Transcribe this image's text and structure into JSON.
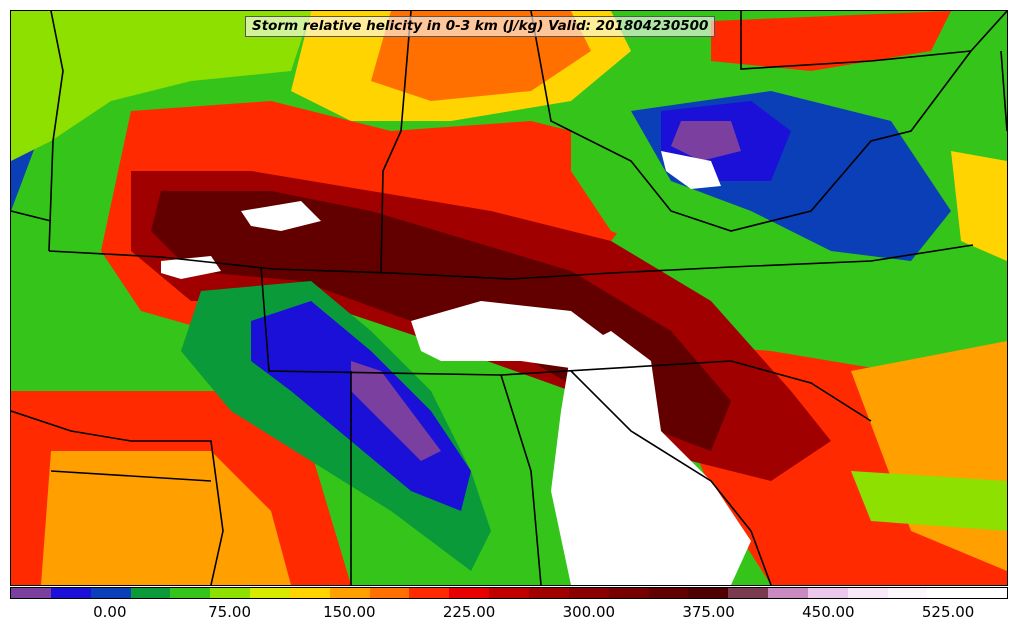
{
  "title": "Storm relative helicity in 0-3 km (J/kg) Valid: 201804230500",
  "colorbar": {
    "min": -50,
    "max": 575,
    "step": 25,
    "tick_labels": [
      "0.00",
      "75.00",
      "150.00",
      "225.00",
      "300.00",
      "375.00",
      "450.00",
      "525.00"
    ],
    "tick_values": [
      0,
      75,
      150,
      225,
      300,
      375,
      450,
      525
    ],
    "colors": [
      "#7b3fa0",
      "#1a10d8",
      "#0a3fb8",
      "#0a9a3a",
      "#34c41a",
      "#8ee000",
      "#d7ea00",
      "#ffd400",
      "#ffa000",
      "#ff7000",
      "#ff2a00",
      "#e80000",
      "#c00000",
      "#a00000",
      "#8a0000",
      "#760000",
      "#620000",
      "#4e0000",
      "#7a3a50",
      "#c88ac0",
      "#ecc8ec",
      "#f8e8f8",
      "#fdf6fd",
      "#ffffff",
      "#ffffff"
    ]
  },
  "map": {
    "background_color": "#34c41a",
    "boundary_color": "#000000",
    "fill_regions": [
      {
        "level": "#0a3fb8",
        "points": [
          [
            0,
            0
          ],
          [
            70,
            0
          ],
          [
            60,
            60
          ],
          [
            30,
            120
          ],
          [
            0,
            200
          ]
        ]
      },
      {
        "level": "#8ee000",
        "points": [
          [
            0,
            0
          ],
          [
            300,
            0
          ],
          [
            280,
            60
          ],
          [
            180,
            70
          ],
          [
            100,
            90
          ],
          [
            40,
            130
          ],
          [
            0,
            150
          ]
        ]
      },
      {
        "level": "#ffd400",
        "points": [
          [
            300,
            0
          ],
          [
            600,
            0
          ],
          [
            620,
            40
          ],
          [
            560,
            90
          ],
          [
            440,
            110
          ],
          [
            340,
            110
          ],
          [
            280,
            80
          ]
        ]
      },
      {
        "level": "#ff7000",
        "points": [
          [
            380,
            0
          ],
          [
            560,
            0
          ],
          [
            580,
            40
          ],
          [
            520,
            80
          ],
          [
            420,
            90
          ],
          [
            360,
            70
          ]
        ]
      },
      {
        "level": "#ff2a00",
        "points": [
          [
            120,
            100
          ],
          [
            260,
            90
          ],
          [
            380,
            120
          ],
          [
            520,
            110
          ],
          [
            600,
            130
          ],
          [
            640,
            180
          ],
          [
            600,
            230
          ],
          [
            520,
            270
          ],
          [
            400,
            280
          ],
          [
            300,
            300
          ],
          [
            200,
            320
          ],
          [
            130,
            300
          ],
          [
            90,
            240
          ]
        ]
      },
      {
        "level": "#ff2a00",
        "points": [
          [
            0,
            380
          ],
          [
            240,
            380
          ],
          [
            300,
            440
          ],
          [
            340,
            574
          ],
          [
            0,
            574
          ]
        ]
      },
      {
        "level": "#ffa000",
        "points": [
          [
            40,
            440
          ],
          [
            200,
            440
          ],
          [
            260,
            500
          ],
          [
            280,
            574
          ],
          [
            30,
            574
          ]
        ]
      },
      {
        "level": "#ff2a00",
        "points": [
          [
            640,
            330
          ],
          [
            760,
            340
          ],
          [
            880,
            360
          ],
          [
            960,
            390
          ],
          [
            996,
            430
          ],
          [
            996,
            574
          ],
          [
            760,
            574
          ],
          [
            700,
            480
          ]
        ]
      },
      {
        "level": "#ffa000",
        "points": [
          [
            840,
            360
          ],
          [
            996,
            330
          ],
          [
            996,
            560
          ],
          [
            900,
            520
          ]
        ]
      },
      {
        "level": "#8ee000",
        "points": [
          [
            840,
            460
          ],
          [
            996,
            470
          ],
          [
            996,
            520
          ],
          [
            860,
            510
          ]
        ]
      },
      {
        "level": "#a00000",
        "points": [
          [
            120,
            160
          ],
          [
            240,
            160
          ],
          [
            360,
            180
          ],
          [
            480,
            200
          ],
          [
            600,
            230
          ],
          [
            700,
            290
          ],
          [
            780,
            380
          ],
          [
            820,
            430
          ],
          [
            760,
            470
          ],
          [
            640,
            440
          ],
          [
            560,
            380
          ],
          [
            420,
            330
          ],
          [
            300,
            290
          ],
          [
            180,
            290
          ],
          [
            120,
            240
          ]
        ]
      },
      {
        "level": "#620000",
        "points": [
          [
            150,
            180
          ],
          [
            260,
            180
          ],
          [
            360,
            200
          ],
          [
            460,
            230
          ],
          [
            560,
            260
          ],
          [
            660,
            320
          ],
          [
            720,
            390
          ],
          [
            700,
            440
          ],
          [
            620,
            410
          ],
          [
            520,
            350
          ],
          [
            400,
            310
          ],
          [
            290,
            270
          ],
          [
            180,
            260
          ],
          [
            140,
            220
          ]
        ]
      },
      {
        "level": "#0a9a3a",
        "points": [
          [
            190,
            280
          ],
          [
            300,
            270
          ],
          [
            360,
            320
          ],
          [
            420,
            380
          ],
          [
            460,
            460
          ],
          [
            480,
            520
          ],
          [
            460,
            560
          ],
          [
            380,
            500
          ],
          [
            300,
            450
          ],
          [
            220,
            400
          ],
          [
            170,
            340
          ]
        ]
      },
      {
        "level": "#1a10d8",
        "points": [
          [
            240,
            310
          ],
          [
            300,
            290
          ],
          [
            360,
            340
          ],
          [
            420,
            400
          ],
          [
            460,
            460
          ],
          [
            450,
            500
          ],
          [
            400,
            480
          ],
          [
            340,
            430
          ],
          [
            280,
            380
          ],
          [
            240,
            350
          ]
        ]
      },
      {
        "level": "#7b3fa0",
        "points": [
          [
            340,
            350
          ],
          [
            370,
            360
          ],
          [
            400,
            400
          ],
          [
            430,
            440
          ],
          [
            410,
            450
          ],
          [
            370,
            410
          ],
          [
            340,
            380
          ]
        ]
      },
      {
        "level": "#34c41a",
        "points": [
          [
            560,
            90
          ],
          [
            700,
            70
          ],
          [
            840,
            60
          ],
          [
            960,
            80
          ],
          [
            996,
            140
          ],
          [
            996,
            260
          ],
          [
            940,
            300
          ],
          [
            800,
            300
          ],
          [
            700,
            260
          ],
          [
            600,
            220
          ],
          [
            560,
            160
          ]
        ]
      },
      {
        "level": "#0a3fb8",
        "points": [
          [
            620,
            100
          ],
          [
            760,
            80
          ],
          [
            880,
            110
          ],
          [
            940,
            200
          ],
          [
            900,
            250
          ],
          [
            820,
            240
          ],
          [
            740,
            200
          ],
          [
            660,
            170
          ]
        ]
      },
      {
        "level": "#1a10d8",
        "points": [
          [
            650,
            100
          ],
          [
            740,
            90
          ],
          [
            780,
            120
          ],
          [
            760,
            170
          ],
          [
            700,
            170
          ],
          [
            650,
            140
          ]
        ]
      },
      {
        "level": "#7b3fa0",
        "points": [
          [
            670,
            110
          ],
          [
            720,
            110
          ],
          [
            730,
            140
          ],
          [
            690,
            150
          ],
          [
            660,
            135
          ]
        ]
      },
      {
        "level": "#ffd400",
        "points": [
          [
            940,
            140
          ],
          [
            996,
            150
          ],
          [
            996,
            250
          ],
          [
            950,
            230
          ]
        ]
      },
      {
        "level": "#ff2a00",
        "points": [
          [
            700,
            10
          ],
          [
            940,
            0
          ],
          [
            920,
            40
          ],
          [
            800,
            60
          ],
          [
            700,
            50
          ]
        ]
      },
      {
        "level": "#ffffff",
        "points": [
          [
            400,
            310
          ],
          [
            470,
            290
          ],
          [
            560,
            300
          ],
          [
            600,
            330
          ],
          [
            580,
            360
          ],
          [
            510,
            350
          ],
          [
            430,
            350
          ],
          [
            410,
            340
          ]
        ]
      },
      {
        "level": "#ffffff",
        "points": [
          [
            560,
            340
          ],
          [
            600,
            320
          ],
          [
            640,
            350
          ],
          [
            650,
            420
          ],
          [
            700,
            470
          ],
          [
            740,
            530
          ],
          [
            720,
            574
          ],
          [
            560,
            574
          ],
          [
            540,
            480
          ],
          [
            550,
            400
          ]
        ]
      },
      {
        "level": "#ffffff",
        "points": [
          [
            230,
            200
          ],
          [
            290,
            190
          ],
          [
            310,
            210
          ],
          [
            270,
            220
          ],
          [
            240,
            215
          ]
        ]
      },
      {
        "level": "#ffffff",
        "points": [
          [
            150,
            250
          ],
          [
            200,
            245
          ],
          [
            210,
            260
          ],
          [
            170,
            268
          ],
          [
            150,
            262
          ]
        ]
      },
      {
        "level": "#ffffff",
        "points": [
          [
            650,
            140
          ],
          [
            700,
            150
          ],
          [
            710,
            175
          ],
          [
            680,
            178
          ],
          [
            655,
            160
          ]
        ]
      }
    ],
    "boundaries": [
      [
        [
          40,
          0
        ],
        [
          52,
          60
        ],
        [
          42,
          130
        ],
        [
          38,
          240
        ]
      ],
      [
        [
          38,
          240
        ],
        [
          150,
          246
        ],
        [
          262,
          258
        ],
        [
          380,
          262
        ]
      ],
      [
        [
          250,
          256
        ],
        [
          258,
          360
        ],
        [
          490,
          364
        ],
        [
          720,
          350
        ],
        [
          800,
          372
        ],
        [
          860,
          410
        ]
      ],
      [
        [
          380,
          262
        ],
        [
          500,
          268
        ],
        [
          600,
          262
        ],
        [
          720,
          256
        ],
        [
          860,
          250
        ],
        [
          962,
          234
        ]
      ],
      [
        [
          370,
          262
        ],
        [
          372,
          160
        ],
        [
          390,
          120
        ],
        [
          400,
          0
        ]
      ],
      [
        [
          520,
          0
        ],
        [
          540,
          110
        ],
        [
          620,
          150
        ],
        [
          660,
          200
        ],
        [
          720,
          220
        ],
        [
          800,
          200
        ],
        [
          860,
          130
        ],
        [
          900,
          120
        ],
        [
          960,
          40
        ]
      ],
      [
        [
          730,
          0
        ],
        [
          730,
          58
        ],
        [
          860,
          50
        ],
        [
          960,
          40
        ]
      ],
      [
        [
          0,
          400
        ],
        [
          60,
          420
        ],
        [
          120,
          430
        ],
        [
          200,
          430
        ],
        [
          212,
          520
        ],
        [
          200,
          574
        ]
      ],
      [
        [
          340,
          360
        ],
        [
          340,
          574
        ]
      ],
      [
        [
          490,
          364
        ],
        [
          520,
          460
        ],
        [
          530,
          574
        ]
      ],
      [
        [
          560,
          360
        ],
        [
          620,
          420
        ],
        [
          700,
          470
        ],
        [
          740,
          520
        ],
        [
          760,
          574
        ]
      ],
      [
        [
          40,
          460
        ],
        [
          200,
          470
        ]
      ],
      [
        [
          0,
          200
        ],
        [
          40,
          210
        ]
      ],
      [
        [
          960,
          40
        ],
        [
          996,
          0
        ]
      ],
      [
        [
          990,
          40
        ],
        [
          996,
          120
        ]
      ]
    ]
  }
}
